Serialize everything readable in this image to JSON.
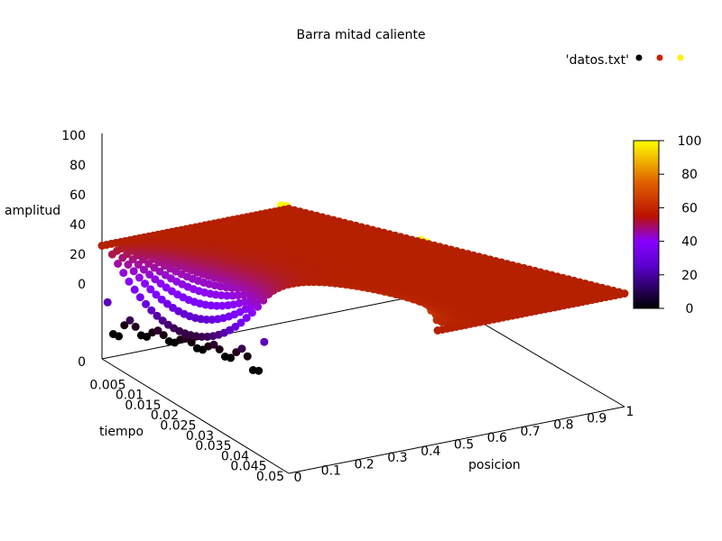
{
  "chart_data": {
    "type": "scatter",
    "plot_style": "3d-surface-points",
    "title": "Barra mitad caliente",
    "xlabel": "posicion",
    "ylabel": "tiempo",
    "zlabel": "amplitud",
    "xlim": [
      0,
      1
    ],
    "ylim": [
      0,
      0.05
    ],
    "zlim": [
      0,
      100
    ],
    "x_ticks": [
      "0",
      "0.1",
      "0.2",
      "0.3",
      "0.4",
      "0.5",
      "0.6",
      "0.7",
      "0.8",
      "0.9",
      "1"
    ],
    "y_ticks": [
      "0",
      "0.005",
      "0.01",
      "0.015",
      "0.02",
      "0.025",
      "0.03",
      "0.035",
      "0.04",
      "0.045",
      "0.05"
    ],
    "z_ticks": [
      "0",
      "20",
      "40",
      "60",
      "80",
      "100"
    ],
    "legend": {
      "label": "'datos.txt'",
      "position": "top-right",
      "marker_colors": [
        "#000000",
        "#cc2200",
        "#ffee00"
      ]
    },
    "colorbar": {
      "min": 0,
      "max": 100,
      "ticks": [
        "0",
        "20",
        "40",
        "60",
        "80",
        "100"
      ],
      "palette": [
        "#000000",
        "#7700ff",
        "#bb1100",
        "#ff9900",
        "#ffff00"
      ]
    },
    "surface": {
      "description_free": true,
      "x_samples": [
        0,
        0.05,
        0.1,
        0.15,
        0.2,
        0.25,
        0.3,
        0.35,
        0.4,
        0.45,
        0.5,
        0.55,
        0.6,
        0.65,
        0.7,
        0.75,
        0.8,
        0.85,
        0.9,
        0.95,
        1
      ],
      "t_samples": [
        0,
        0.005,
        0.01,
        0.015,
        0.02,
        0.025,
        0.03,
        0.035,
        0.04,
        0.045,
        0.05
      ],
      "initial_profile": {
        "cold_half": [
          0,
          0.5,
          0
        ],
        "hot_half": [
          0.5,
          1,
          100
        ]
      },
      "boundary_values": [
        50,
        50
      ]
    }
  }
}
